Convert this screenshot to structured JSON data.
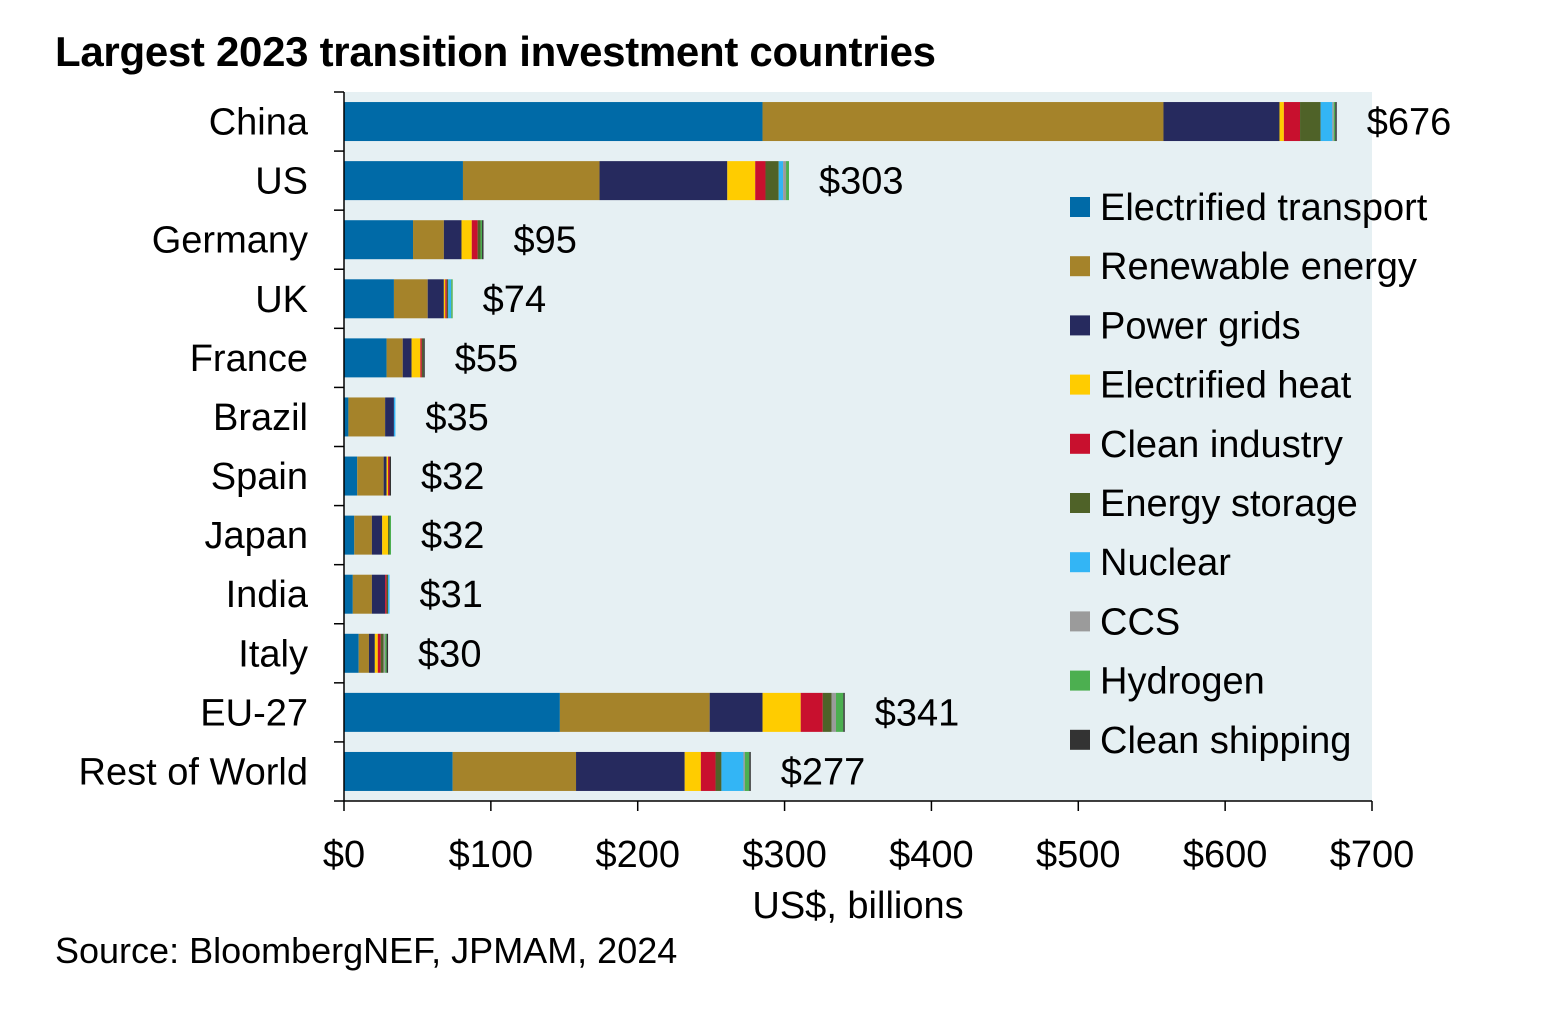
{
  "title": "Largest 2023 transition investment countries",
  "source": "Source: BloombergNEF, JPMAM, 2024",
  "chart_data": {
    "type": "bar",
    "orientation": "horizontal",
    "stacked": true,
    "title": "Largest 2023 transition investment countries",
    "xlabel": "US$, billions",
    "ylabel": "",
    "xlim": [
      0,
      700
    ],
    "xticks": [
      0,
      100,
      200,
      300,
      400,
      500,
      600,
      700
    ],
    "xtick_labels": [
      "$0",
      "$100",
      "$200",
      "$300",
      "$400",
      "$500",
      "$600",
      "$700"
    ],
    "legend_position": "right",
    "background": "#e6f0f3",
    "categories": [
      "China",
      "US",
      "Germany",
      "UK",
      "France",
      "Brazil",
      "Spain",
      "Japan",
      "India",
      "Italy",
      "EU-27",
      "Rest of World"
    ],
    "totals": [
      "$676",
      "$303",
      "$95",
      "$74",
      "$55",
      "$35",
      "$32",
      "$32",
      "$31",
      "$30",
      "$341",
      "$277"
    ],
    "series": [
      {
        "name": "Electrified transport",
        "color": "#006aa7",
        "values": [
          285,
          81,
          47,
          34,
          29,
          3,
          9,
          7,
          6,
          10,
          147,
          74
        ]
      },
      {
        "name": "Renewable energy",
        "color": "#a5832a",
        "values": [
          273,
          93,
          21,
          23,
          11,
          25,
          18,
          12,
          13,
          7,
          102,
          84
        ]
      },
      {
        "name": "Power grids",
        "color": "#262a5e",
        "values": [
          79,
          87,
          12,
          11,
          6,
          6,
          2,
          7,
          9,
          4,
          36,
          74
        ]
      },
      {
        "name": "Electrified heat",
        "color": "#ffcc00",
        "values": [
          3,
          19,
          7,
          1,
          6,
          0,
          1,
          4,
          0,
          2,
          26,
          11
        ]
      },
      {
        "name": "Clean industry",
        "color": "#c8102e",
        "values": [
          11,
          7,
          4,
          1,
          1,
          0,
          1,
          0,
          1,
          2,
          15,
          10
        ]
      },
      {
        "name": "Energy storage",
        "color": "#4f6228",
        "values": [
          14,
          9,
          2,
          1,
          1,
          0,
          0,
          1,
          1,
          2,
          6,
          4
        ]
      },
      {
        "name": "Nuclear",
        "color": "#33b5f5",
        "values": [
          8,
          3,
          0,
          2,
          0,
          1,
          0,
          0,
          1,
          0,
          0,
          15
        ]
      },
      {
        "name": "CCS",
        "color": "#9b9b9b",
        "values": [
          1,
          2,
          0,
          0,
          0,
          0,
          0,
          0,
          0,
          1,
          3,
          1
        ]
      },
      {
        "name": "Hydrogen",
        "color": "#4caf50",
        "values": [
          1,
          2,
          1,
          1,
          0,
          0,
          0,
          1,
          0,
          1,
          5,
          3
        ]
      },
      {
        "name": "Clean shipping",
        "color": "#333333",
        "values": [
          1,
          0,
          1,
          0,
          1,
          0,
          1,
          0,
          0,
          1,
          1,
          1
        ]
      }
    ]
  }
}
